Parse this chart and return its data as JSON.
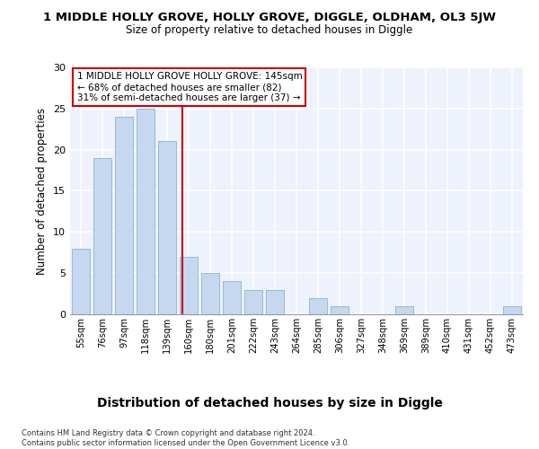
{
  "title": "1 MIDDLE HOLLY GROVE, HOLLY GROVE, DIGGLE, OLDHAM, OL3 5JW",
  "subtitle": "Size of property relative to detached houses in Diggle",
  "xlabel": "Distribution of detached houses by size in Diggle",
  "ylabel": "Number of detached properties",
  "categories": [
    "55sqm",
    "76sqm",
    "97sqm",
    "118sqm",
    "139sqm",
    "160sqm",
    "180sqm",
    "201sqm",
    "222sqm",
    "243sqm",
    "264sqm",
    "285sqm",
    "306sqm",
    "327sqm",
    "348sqm",
    "369sqm",
    "389sqm",
    "410sqm",
    "431sqm",
    "452sqm",
    "473sqm"
  ],
  "values": [
    8,
    19,
    24,
    25,
    21,
    7,
    5,
    4,
    3,
    3,
    0,
    2,
    1,
    0,
    0,
    1,
    0,
    0,
    0,
    0,
    1
  ],
  "bar_color": "#c5d8f0",
  "bar_edge_color": "#8ab4d8",
  "vline_x": 4.72,
  "vline_color": "#cc0000",
  "annotation_text": "1 MIDDLE HOLLY GROVE HOLLY GROVE: 145sqm\n← 68% of detached houses are smaller (82)\n31% of semi-detached houses are larger (37) →",
  "annotation_box_color": "#ffffff",
  "annotation_box_edge": "#cc0000",
  "ylim": [
    0,
    30
  ],
  "yticks": [
    0,
    5,
    10,
    15,
    20,
    25,
    30
  ],
  "background_color": "#eef2fc",
  "grid_color": "#ffffff",
  "footnote": "Contains HM Land Registry data © Crown copyright and database right 2024.\nContains public sector information licensed under the Open Government Licence v3.0.",
  "title_fontsize": 9.5,
  "subtitle_fontsize": 8.5,
  "xlabel_fontsize": 10,
  "ylabel_fontsize": 8.5,
  "annot_fontsize": 7.5
}
